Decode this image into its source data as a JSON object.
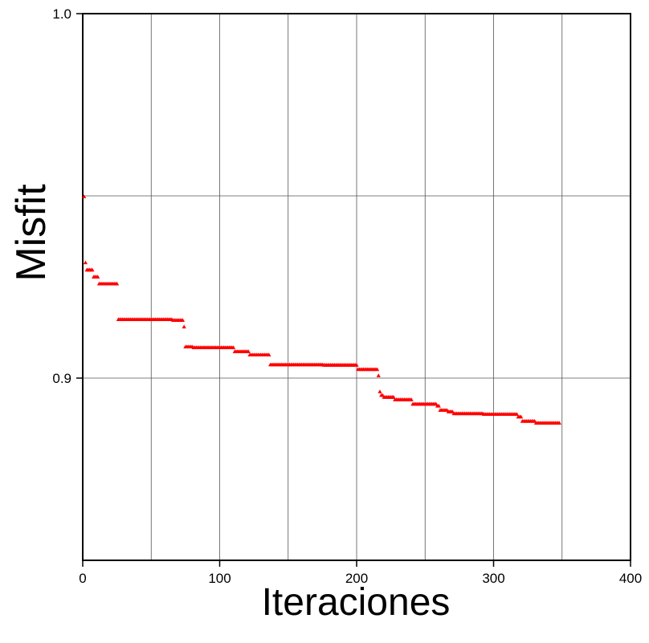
{
  "chart_data": {
    "type": "scatter",
    "title": "",
    "xlabel": "Iteraciones",
    "ylabel": "Misfit",
    "xlim": [
      0,
      400
    ],
    "ylim": [
      0.85,
      1.0
    ],
    "x_ticks": [
      0,
      100,
      200,
      300,
      400
    ],
    "y_tick_labels": [
      {
        "value": 1.0,
        "label": "1.0"
      },
      {
        "value": 0.9,
        "label": "0.9"
      }
    ],
    "x_gridlines": [
      50,
      100,
      150,
      200,
      250,
      300,
      350
    ],
    "y_gridlines": [
      0.95,
      0.9
    ],
    "grid": true,
    "marker": "triangle",
    "color": "#ff0000",
    "series": [
      {
        "steps": [
          {
            "x": [
              1,
              1
            ],
            "y": 0.9498
          },
          {
            "x": [
              2,
              2
            ],
            "y": 0.9317
          },
          {
            "x": [
              3,
              7
            ],
            "y": 0.9297
          },
          {
            "x": [
              8,
              11
            ],
            "y": 0.9278
          },
          {
            "x": [
              12,
              25
            ],
            "y": 0.9259
          },
          {
            "x": [
              26,
              65
            ],
            "y": 0.9161
          },
          {
            "x": [
              66,
              73
            ],
            "y": 0.9159
          },
          {
            "x": [
              74,
              74
            ],
            "y": 0.9141
          },
          {
            "x": [
              75,
              80
            ],
            "y": 0.9086
          },
          {
            "x": [
              81,
              110
            ],
            "y": 0.9084
          },
          {
            "x": [
              111,
              121
            ],
            "y": 0.9073
          },
          {
            "x": [
              122,
              136
            ],
            "y": 0.9064
          },
          {
            "x": [
              137,
              175
            ],
            "y": 0.9037
          },
          {
            "x": [
              176,
              200
            ],
            "y": 0.9036
          },
          {
            "x": [
              201,
              215
            ],
            "y": 0.9024
          },
          {
            "x": [
              216,
              216
            ],
            "y": 0.9007
          },
          {
            "x": [
              217,
              217
            ],
            "y": 0.8963
          },
          {
            "x": [
              218,
              219
            ],
            "y": 0.8953
          },
          {
            "x": [
              220,
              227
            ],
            "y": 0.8948
          },
          {
            "x": [
              228,
              240
            ],
            "y": 0.8941
          },
          {
            "x": [
              241,
              258
            ],
            "y": 0.8929
          },
          {
            "x": [
              259,
              260
            ],
            "y": 0.8924
          },
          {
            "x": [
              261,
              266
            ],
            "y": 0.8912
          },
          {
            "x": [
              267,
              270
            ],
            "y": 0.8908
          },
          {
            "x": [
              271,
              292
            ],
            "y": 0.8903
          },
          {
            "x": [
              293,
              317
            ],
            "y": 0.8901
          },
          {
            "x": [
              318,
              320
            ],
            "y": 0.8894
          },
          {
            "x": [
              321,
              330
            ],
            "y": 0.8882
          },
          {
            "x": [
              331,
              348
            ],
            "y": 0.8877
          }
        ]
      }
    ]
  }
}
